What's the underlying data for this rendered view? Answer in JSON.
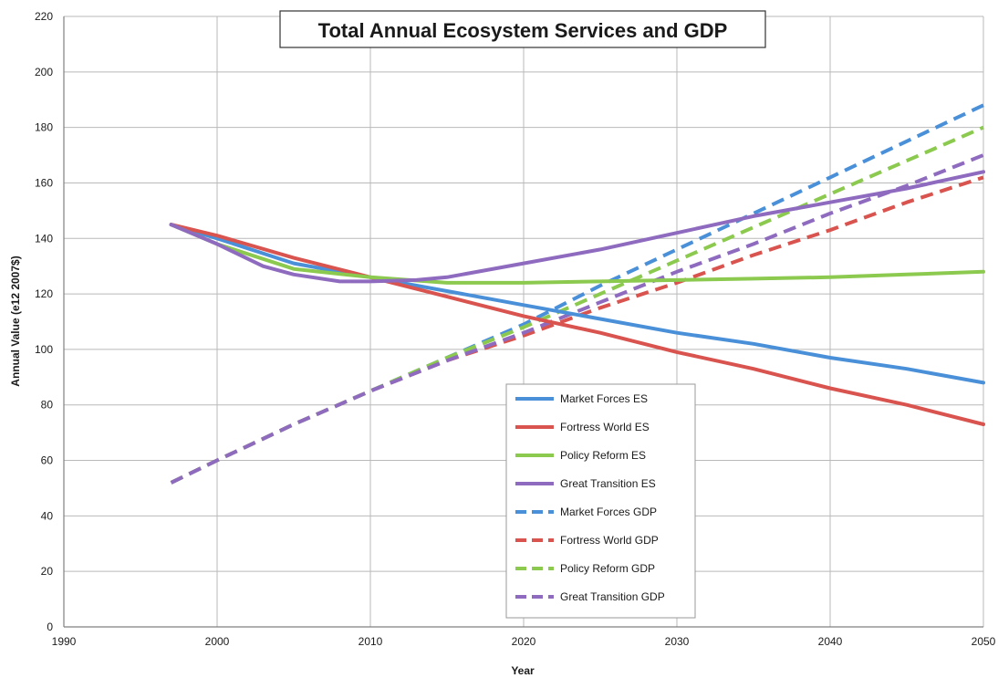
{
  "chart_data": {
    "type": "line",
    "title": "Total Annual Ecosystem Services and GDP",
    "xlabel": "Year",
    "ylabel": "Annual Value (e12 2007$)",
    "xlim": [
      1990,
      2050
    ],
    "ylim": [
      0,
      220
    ],
    "xticks": [
      1990,
      2000,
      2010,
      2020,
      2030,
      2040,
      2050
    ],
    "yticks": [
      0,
      20,
      40,
      60,
      80,
      100,
      120,
      140,
      160,
      180,
      200,
      220
    ],
    "grid": true,
    "legend_position": "bottom-center",
    "series": [
      {
        "name": "Market Forces ES",
        "color": "#4a90d9",
        "style": "solid",
        "x": [
          1997,
          2000,
          2005,
          2010,
          2015,
          2020,
          2025,
          2030,
          2035,
          2040,
          2045,
          2050
        ],
        "y": [
          145,
          140,
          131,
          126,
          121,
          116,
          111,
          106,
          102,
          97,
          93,
          88
        ]
      },
      {
        "name": "Fortress World ES",
        "color": "#d9534f",
        "style": "solid",
        "x": [
          1997,
          2000,
          2005,
          2010,
          2015,
          2020,
          2025,
          2030,
          2035,
          2040,
          2045,
          2050
        ],
        "y": [
          145,
          141,
          133,
          126,
          119,
          112,
          106,
          99,
          93,
          86,
          80,
          73
        ]
      },
      {
        "name": "Policy Reform ES",
        "color": "#8cc94f",
        "style": "solid",
        "x": [
          1997,
          2000,
          2005,
          2010,
          2015,
          2020,
          2025,
          2030,
          2035,
          2040,
          2045,
          2050
        ],
        "y": [
          145,
          138,
          129,
          126,
          124,
          124,
          124.5,
          125,
          125.5,
          126,
          127,
          128
        ]
      },
      {
        "name": "Great Transition ES",
        "color": "#8e6bbf",
        "style": "solid",
        "x": [
          1997,
          2000,
          2003,
          2005,
          2008,
          2010,
          2013,
          2015,
          2020,
          2025,
          2030,
          2035,
          2040,
          2045,
          2050
        ],
        "y": [
          145,
          138,
          130,
          127,
          124.5,
          124.5,
          125,
          126,
          131,
          136,
          142,
          148,
          153,
          158,
          164
        ]
      },
      {
        "name": "Market Forces GDP",
        "color": "#4a90d9",
        "style": "dashed",
        "x": [
          1997,
          2000,
          2005,
          2010,
          2015,
          2020,
          2025,
          2030,
          2035,
          2040,
          2045,
          2050
        ],
        "y": [
          52,
          60,
          73,
          85,
          97,
          109,
          123,
          136,
          149,
          162,
          175,
          188
        ]
      },
      {
        "name": "Fortress World GDP",
        "color": "#d9534f",
        "style": "dashed",
        "x": [
          1997,
          2000,
          2005,
          2010,
          2015,
          2020,
          2025,
          2030,
          2035,
          2040,
          2045,
          2050
        ],
        "y": [
          52,
          60,
          73,
          85,
          96,
          105,
          115,
          124,
          134,
          143,
          153,
          162
        ]
      },
      {
        "name": "Policy Reform GDP",
        "color": "#8cc94f",
        "style": "dashed",
        "x": [
          1997,
          2000,
          2005,
          2010,
          2015,
          2020,
          2025,
          2030,
          2035,
          2040,
          2045,
          2050
        ],
        "y": [
          52,
          60,
          73,
          85,
          97,
          108,
          120,
          132,
          144,
          156,
          168,
          180
        ]
      },
      {
        "name": "Great Transition GDP",
        "color": "#8e6bbf",
        "style": "dashed",
        "x": [
          1997,
          2000,
          2005,
          2010,
          2015,
          2020,
          2025,
          2030,
          2035,
          2040,
          2045,
          2050
        ],
        "y": [
          52,
          60,
          73,
          85,
          96,
          106,
          117,
          128,
          138,
          149,
          159,
          170
        ]
      }
    ]
  }
}
